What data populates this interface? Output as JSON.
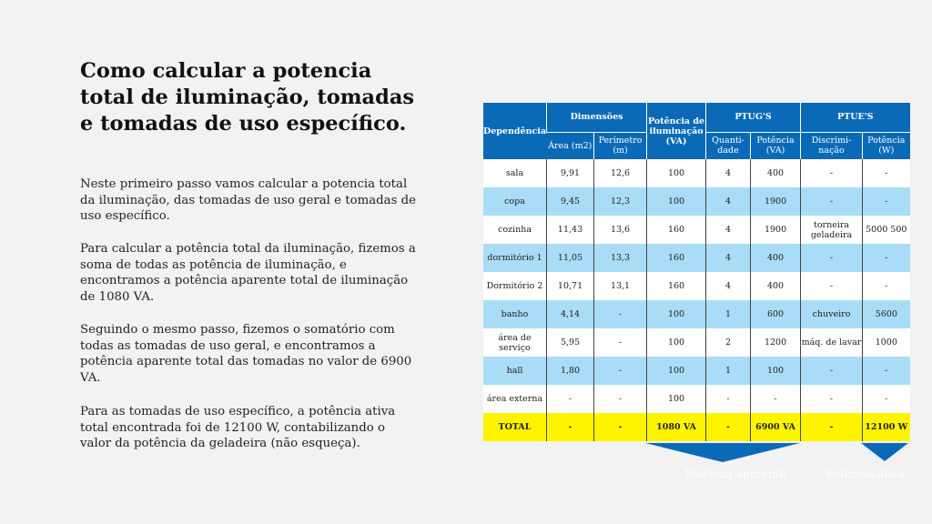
{
  "title": "Como calcular a potencia total de iluminação, tomadas e tomadas de uso específico.",
  "paragraphs": [
    "Neste primeiro passo vamos calcular a potencia total da iluminação, das tomadas de uso geral e tomadas de uso específico.",
    "Para calcular a potência total da iluminação, fizemos a soma de todas as potência de iluminação,  e encontramos a potência aparente total de iluminação de 1080 VA.",
    "Seguindo o mesmo passo, fizemos o somatório com todas as tomadas de uso geral, e encontramos a potência aparente total das tomadas no valor de 6900 VA.",
    "Para as tomadas de uso específico, a potência ativa total encontrada foi de 12100 W, contabilizando o valor da potência da geladeira (não esqueça)."
  ],
  "table": {
    "headers": {
      "dependencia": "Dependência",
      "dimensoes": "Dimensões",
      "potencia_iluminacao": "Potência de iluminação (VA)",
      "ptugs": "PTUG'S",
      "ptues": "PTUE'S",
      "area": "Área (m2)",
      "perimetro": "Perímetro (m)",
      "quantidade": "Quanti-dade",
      "potencia_va": "Potência (VA)",
      "discriminacao": "Discrimi-nação",
      "potencia_w": "Potência (W)"
    },
    "rows": [
      [
        "sala",
        "9,91",
        "12,6",
        "100",
        "4",
        "400",
        "-",
        "-"
      ],
      [
        "copa",
        "9,45",
        "12,3",
        "100",
        "4",
        "1900",
        "-",
        "-"
      ],
      [
        "cozinha",
        "11,43",
        "13,6",
        "160",
        "4",
        "1900",
        "torneira geladeira",
        "5000 500"
      ],
      [
        "dormitório 1",
        "11,05",
        "13,3",
        "160",
        "4",
        "400",
        "-",
        "-"
      ],
      [
        "Dormitório 2",
        "10,71",
        "13,1",
        "160",
        "4",
        "400",
        "-",
        "-"
      ],
      [
        "banho",
        "4,14",
        "-",
        "100",
        "1",
        "600",
        "chuveiro",
        "5600"
      ],
      [
        "área de serviço",
        "5,95",
        "-",
        "100",
        "2",
        "1200",
        "máq. de lavar",
        "1000"
      ],
      [
        "hall",
        "1,80",
        "-",
        "100",
        "1",
        "100",
        "-",
        "-"
      ],
      [
        "área externa",
        "-",
        "-",
        "100",
        "-",
        "-",
        "-",
        "-"
      ],
      [
        "TOTAL",
        "-",
        "-",
        "1080 VA",
        "-",
        "6900 VA",
        "-",
        "12100 W"
      ]
    ]
  },
  "arrows": {
    "aparente": "Potência aparente",
    "ativa": "Potência ativa",
    "color": "#0a6ab8"
  }
}
